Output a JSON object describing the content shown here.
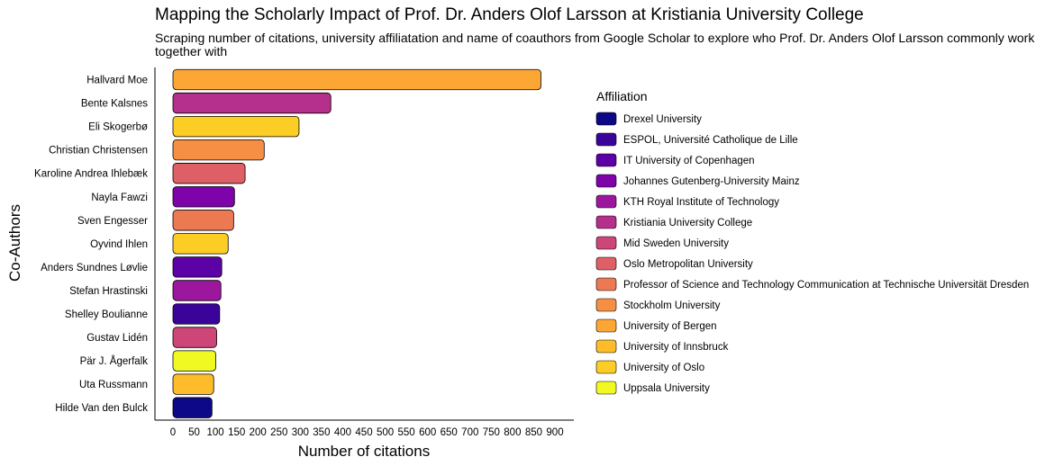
{
  "chart_data": {
    "type": "bar",
    "orientation": "horizontal",
    "title": "Mapping the Scholarly Impact of Prof. Dr. Anders Olof Larsson at Kristiania University College",
    "subtitle": "Scraping number of citations, university affiliatation and name of coauthors from Google Scholar to explore who Prof. Dr. Anders Olof Larsson commonly work together with",
    "xlabel": "Number of citations",
    "ylabel": "Co-Authors",
    "xlim": [
      0,
      900
    ],
    "x_ticks": [
      0,
      50,
      100,
      150,
      200,
      250,
      300,
      350,
      400,
      450,
      500,
      550,
      600,
      650,
      700,
      750,
      800,
      850,
      900
    ],
    "grid": false,
    "legend_title": "Affiliation",
    "legend_position": "right",
    "legend": [
      {
        "name": "Drexel University",
        "color": "#0d0887"
      },
      {
        "name": "ESPOL, Université Catholique de Lille",
        "color": "#3a049a"
      },
      {
        "name": "IT University of Copenhagen",
        "color": "#5c01a6"
      },
      {
        "name": "Johannes Gutenberg-University Mainz",
        "color": "#7e03a8"
      },
      {
        "name": "KTH Royal Institute of Technology",
        "color": "#9c179e"
      },
      {
        "name": "Kristiania University College",
        "color": "#b52f8c"
      },
      {
        "name": "Mid Sweden University",
        "color": "#cc4778"
      },
      {
        "name": "Oslo Metropolitan University",
        "color": "#de5f65"
      },
      {
        "name": "Professor of Science and Technology Communication at Technische Universität Dresden",
        "color": "#ed7953"
      },
      {
        "name": "Stockholm University",
        "color": "#f68f44"
      },
      {
        "name": "University of Bergen",
        "color": "#fca636"
      },
      {
        "name": "University of Innsbruck",
        "color": "#febc2a"
      },
      {
        "name": "University of Oslo",
        "color": "#fcce25"
      },
      {
        "name": "Uppsala University",
        "color": "#f0f921"
      }
    ],
    "categories": [
      "Hallvard Moe",
      "Bente Kalsnes",
      "Eli Skogerbø",
      "Christian Christensen",
      "Karoline Andrea Ihlebæk",
      "Nayla Fawzi",
      "Sven Engesser",
      "Oyvind Ihlen",
      "Anders Sundnes Løvlie",
      "Stefan Hrastinski",
      "Shelley Boulianne",
      "Gustav Lidén",
      "Pär J. Ågerfalk",
      "Uta Russmann",
      "Hilde Van den Bulck"
    ],
    "values": [
      867,
      372,
      297,
      215,
      170,
      145,
      143,
      130,
      115,
      113,
      110,
      103,
      101,
      96,
      92
    ],
    "affiliations": [
      "University of Bergen",
      "Kristiania University College",
      "University of Oslo",
      "Stockholm University",
      "Oslo Metropolitan University",
      "Johannes Gutenberg-University Mainz",
      "Professor of Science and Technology Communication at Technische Universität Dresden",
      "University of Oslo",
      "IT University of Copenhagen",
      "KTH Royal Institute of Technology",
      "ESPOL, Université Catholique de Lille",
      "Mid Sweden University",
      "Uppsala University",
      "University of Innsbruck",
      "Drexel University"
    ]
  }
}
